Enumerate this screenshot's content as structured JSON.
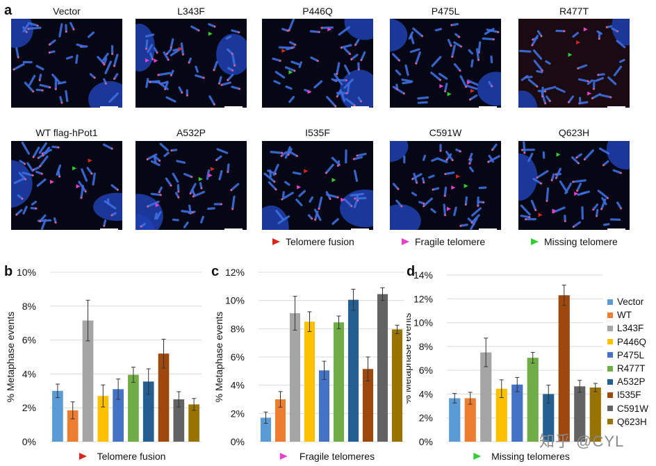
{
  "figure": {
    "panel_a_label": "a",
    "panel_b_label": "b",
    "panel_c_label": "c",
    "panel_d_label": "d",
    "micrographs_row1": [
      "Vector",
      "L343F",
      "P446Q",
      "P475L",
      "R477T"
    ],
    "micrographs_row2": [
      "WT flag-hPot1",
      "A532P",
      "I535F",
      "C591W",
      "Q623H"
    ],
    "arrow_legend": [
      {
        "label": "Telomere fusion",
        "color": "#d9261c"
      },
      {
        "label": "Fragile telomere",
        "color": "#e83fd0"
      },
      {
        "label": "Missing telomere",
        "color": "#33cc33"
      }
    ],
    "watermark": "知乎 @CYL"
  },
  "legend": {
    "items": [
      {
        "label": "Vector",
        "color": "#5b9bd5"
      },
      {
        "label": "WT",
        "color": "#ed7d31"
      },
      {
        "label": "L343F",
        "color": "#a5a5a5"
      },
      {
        "label": "P446Q",
        "color": "#ffc000"
      },
      {
        "label": "P475L",
        "color": "#4472c4"
      },
      {
        "label": "R477T",
        "color": "#70ad47"
      },
      {
        "label": "A532P",
        "color": "#255e91"
      },
      {
        "label": "I535F",
        "color": "#9e480e"
      },
      {
        "label": "C591W",
        "color": "#636363"
      },
      {
        "label": "Q623H",
        "color": "#997300"
      }
    ]
  },
  "chart_data": [
    {
      "type": "bar",
      "panel": "b",
      "categories": [
        "Vector",
        "WT",
        "L343F",
        "P446Q",
        "P475L",
        "R477T",
        "A532P",
        "I535F",
        "C591W",
        "Q623H"
      ],
      "values": [
        3.0,
        1.85,
        7.15,
        2.7,
        3.1,
        3.95,
        3.55,
        5.2,
        2.5,
        2.2
      ],
      "errors": [
        0.4,
        0.5,
        1.2,
        0.65,
        0.6,
        0.45,
        0.75,
        0.85,
        0.45,
        0.35
      ],
      "ylabel": "% Metaphase events",
      "xlabel": "Telomere fusion",
      "ylim": [
        0,
        10
      ],
      "yticks": [
        "0%",
        "2%",
        "4%",
        "6%",
        "8%",
        "10%"
      ],
      "grid": true
    },
    {
      "type": "bar",
      "panel": "c",
      "categories": [
        "Vector",
        "WT",
        "L343F",
        "P446Q",
        "P475L",
        "R477T",
        "A532P",
        "I535F",
        "C591W",
        "Q623H"
      ],
      "values": [
        1.7,
        3.0,
        9.1,
        8.5,
        5.05,
        8.45,
        10.05,
        5.15,
        10.45,
        7.95
      ],
      "errors": [
        0.4,
        0.55,
        1.2,
        0.7,
        0.65,
        0.45,
        0.75,
        0.85,
        0.45,
        0.3
      ],
      "ylabel": "% Metaphase events",
      "xlabel": "Fragile telomeres",
      "ylim": [
        0,
        12
      ],
      "yticks": [
        "0%",
        "2%",
        "4%",
        "6%",
        "8%",
        "10%",
        "12%"
      ],
      "grid": true
    },
    {
      "type": "bar",
      "panel": "d",
      "categories": [
        "Vector",
        "WT",
        "L343F",
        "P446Q",
        "P475L",
        "R477T",
        "A532P",
        "I535F",
        "C591W",
        "Q623H"
      ],
      "values": [
        3.65,
        3.65,
        7.5,
        4.45,
        4.8,
        7.05,
        4.0,
        12.3,
        4.65,
        4.55
      ],
      "errors": [
        0.4,
        0.5,
        1.2,
        0.75,
        0.6,
        0.45,
        0.75,
        0.85,
        0.5,
        0.35
      ],
      "ylabel": "% Metaphase events",
      "xlabel": "Missing telomeres",
      "ylim": [
        0,
        14
      ],
      "yticks": [
        "0%",
        "2%",
        "4%",
        "6%",
        "8%",
        "10%",
        "12%",
        "14%"
      ],
      "grid": true
    }
  ]
}
